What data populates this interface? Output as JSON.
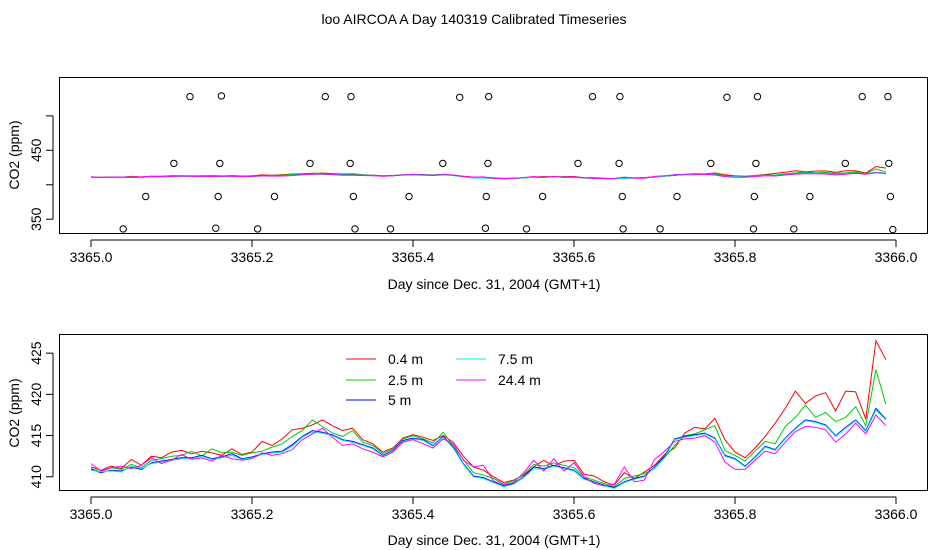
{
  "title": "loo AIRCOA A  Day 140319  Calibrated Timeseries",
  "chart_data": [
    {
      "type": "scatter+line",
      "xlabel": "Day since Dec. 31, 2004 (GMT+1)",
      "ylabel": "CO2 (ppm)",
      "xlim": [
        3365.0,
        3366.0
      ],
      "ylim": [
        330,
        555
      ],
      "x_ticks": [
        "3365.0",
        "3365.2",
        "3365.4",
        "3365.6",
        "3365.8",
        "3366.0"
      ],
      "y_ticks": [
        "350",
        "400",
        "450",
        "500"
      ],
      "y_ticks_printed": [
        "350",
        "",
        "450",
        ""
      ],
      "markers": {
        "style": "open-circle",
        "color": "#000000",
        "points": [
          [
            3365.04,
            336
          ],
          [
            3365.068,
            383
          ],
          [
            3365.103,
            431
          ],
          [
            3365.123,
            528
          ],
          [
            3365.155,
            337
          ],
          [
            3365.158,
            383
          ],
          [
            3365.16,
            431
          ],
          [
            3365.162,
            529
          ],
          [
            3365.207,
            336
          ],
          [
            3365.228,
            383
          ],
          [
            3365.272,
            431
          ],
          [
            3365.291,
            528
          ],
          [
            3365.322,
            431
          ],
          [
            3365.323,
            528
          ],
          [
            3365.326,
            383
          ],
          [
            3365.328,
            336
          ],
          [
            3365.372,
            336
          ],
          [
            3365.395,
            383
          ],
          [
            3365.437,
            431
          ],
          [
            3365.458,
            527
          ],
          [
            3365.49,
            337
          ],
          [
            3365.491,
            383
          ],
          [
            3365.493,
            431
          ],
          [
            3365.494,
            528
          ],
          [
            3365.541,
            336
          ],
          [
            3365.561,
            383
          ],
          [
            3365.605,
            431
          ],
          [
            3365.623,
            528
          ],
          [
            3365.656,
            431
          ],
          [
            3365.657,
            528
          ],
          [
            3365.66,
            383
          ],
          [
            3365.661,
            336
          ],
          [
            3365.707,
            336
          ],
          [
            3365.728,
            383
          ],
          [
            3365.77,
            431
          ],
          [
            3365.79,
            527
          ],
          [
            3365.823,
            336
          ],
          [
            3365.824,
            383
          ],
          [
            3365.826,
            431
          ],
          [
            3365.828,
            528
          ],
          [
            3365.873,
            336
          ],
          [
            3365.893,
            383
          ],
          [
            3365.937,
            431
          ],
          [
            3365.958,
            528
          ],
          [
            3365.99,
            528
          ],
          [
            3365.991,
            431
          ],
          [
            3365.993,
            383
          ],
          [
            3365.996,
            335
          ]
        ]
      },
      "series": [
        {
          "color": "#ff0000",
          "values_ref": "panel2"
        },
        {
          "color": "#00cd00",
          "values_ref": "panel2"
        },
        {
          "color": "#0000ff",
          "values_ref": "panel2"
        },
        {
          "color": "#00eeee",
          "values_ref": "panel2"
        },
        {
          "color": "#ff00ff",
          "values_ref": "panel2"
        }
      ],
      "grid": false
    },
    {
      "type": "line",
      "xlabel": "Day since Dec. 31, 2004 (GMT+1)",
      "ylabel": "CO2 (ppm)",
      "xlim": [
        3365.0,
        3366.0
      ],
      "ylim": [
        408.4,
        427.2
      ],
      "x_ticks": [
        "3365.0",
        "3365.2",
        "3365.4",
        "3365.6",
        "3365.8",
        "3366.0"
      ],
      "y_ticks": [
        "410",
        "415",
        "420",
        "425"
      ],
      "grid": false,
      "legend": "top-left-center",
      "x": [
        3365.0,
        3365.0125,
        3365.025,
        3365.0375,
        3365.05,
        3365.0625,
        3365.075,
        3365.0875,
        3365.1,
        3365.1125,
        3365.125,
        3365.1375,
        3365.15,
        3365.1625,
        3365.175,
        3365.1875,
        3365.2,
        3365.2125,
        3365.225,
        3365.2375,
        3365.25,
        3365.2625,
        3365.275,
        3365.2875,
        3365.3,
        3365.3125,
        3365.325,
        3365.3375,
        3365.35,
        3365.3625,
        3365.375,
        3365.3875,
        3365.4,
        3365.4125,
        3365.425,
        3365.4375,
        3365.45,
        3365.4625,
        3365.475,
        3365.4875,
        3365.5,
        3365.5125,
        3365.525,
        3365.5375,
        3365.55,
        3365.5625,
        3365.575,
        3365.5875,
        3365.6,
        3365.6125,
        3365.625,
        3365.6375,
        3365.65,
        3365.6625,
        3365.675,
        3365.6875,
        3365.7,
        3365.7125,
        3365.725,
        3365.7375,
        3365.75,
        3365.7625,
        3365.775,
        3365.7875,
        3365.8,
        3365.8125,
        3365.825,
        3365.8375,
        3365.85,
        3365.8625,
        3365.875,
        3365.8875,
        3365.9,
        3365.9125,
        3365.925,
        3365.9375,
        3365.95,
        3365.9625,
        3365.975,
        3365.9875
      ],
      "series": [
        {
          "name": "0.4 m",
          "color": "#ff0000",
          "values": [
            411.2,
            410.8,
            411.3,
            411.0,
            412.1,
            411.4,
            412.5,
            412.3,
            413.0,
            413.2,
            412.8,
            413.1,
            412.9,
            412.6,
            413.4,
            412.7,
            413.0,
            414.3,
            413.8,
            414.6,
            415.7,
            415.9,
            416.3,
            416.9,
            416.2,
            415.6,
            415.9,
            414.5,
            414.0,
            413.0,
            413.5,
            414.7,
            415.1,
            414.8,
            414.4,
            415.0,
            414.2,
            412.5,
            411.2,
            410.8,
            410.0,
            409.3,
            409.6,
            410.2,
            411.2,
            412.0,
            411.3,
            411.9,
            412.0,
            410.3,
            410.1,
            409.4,
            409.0,
            410.5,
            409.8,
            410.6,
            411.4,
            412.7,
            413.5,
            415.3,
            416.0,
            415.8,
            417.1,
            414.5,
            413.0,
            412.3,
            413.5,
            414.9,
            416.5,
            418.3,
            420.4,
            418.9,
            419.8,
            420.2,
            418.0,
            420.4,
            420.3,
            417.0,
            426.5,
            424.2
          ]
        },
        {
          "name": "2.5 m",
          "color": "#00cd00",
          "values": [
            411.0,
            410.6,
            411.1,
            410.9,
            411.5,
            411.1,
            412.0,
            412.2,
            412.5,
            412.6,
            413.1,
            412.5,
            413.4,
            412.9,
            413.0,
            412.6,
            412.9,
            413.1,
            413.6,
            414.0,
            414.9,
            415.6,
            416.9,
            416.1,
            415.3,
            414.9,
            415.6,
            414.2,
            413.8,
            412.8,
            413.4,
            414.6,
            415.0,
            414.6,
            414.1,
            415.4,
            413.7,
            412.1,
            410.5,
            410.2,
            409.8,
            409.1,
            409.5,
            410.3,
            411.5,
            411.3,
            411.7,
            411.4,
            411.1,
            410.0,
            409.6,
            409.2,
            408.8,
            409.8,
            410.1,
            410.4,
            411.0,
            412.3,
            413.8,
            415.0,
            415.2,
            415.7,
            416.2,
            413.2,
            412.6,
            411.9,
            413.1,
            414.3,
            414.0,
            416.1,
            417.2,
            418.7,
            417.2,
            417.8,
            416.7,
            417.2,
            418.5,
            416.2,
            423.0,
            418.8
          ]
        },
        {
          "name": "5 m",
          "color": "#0000ff",
          "values": [
            410.9,
            410.5,
            410.8,
            410.7,
            411.2,
            410.9,
            411.7,
            411.9,
            412.1,
            412.3,
            412.3,
            412.6,
            412.2,
            412.4,
            412.8,
            412.2,
            412.4,
            412.8,
            413.0,
            413.1,
            413.9,
            414.9,
            415.6,
            415.4,
            415.1,
            414.5,
            414.3,
            413.9,
            413.5,
            412.6,
            413.2,
            414.4,
            414.7,
            414.5,
            413.8,
            414.9,
            413.6,
            411.6,
            410.1,
            409.9,
            409.4,
            408.9,
            409.2,
            410.0,
            411.2,
            411.0,
            411.4,
            411.1,
            410.8,
            409.8,
            409.4,
            409.0,
            408.7,
            409.4,
            409.8,
            410.1,
            411.2,
            412.5,
            414.6,
            414.9,
            415.1,
            415.3,
            414.7,
            412.6,
            412.2,
            411.3,
            412.4,
            413.7,
            413.3,
            414.7,
            415.9,
            416.9,
            416.7,
            416.3,
            415.0,
            416.0,
            416.9,
            415.6,
            418.3,
            417.0
          ]
        },
        {
          "name": "7.5 m",
          "color": "#00eeee",
          "values": [
            410.8,
            410.6,
            410.7,
            410.6,
            411.3,
            411.0,
            411.6,
            411.8,
            412.0,
            412.2,
            412.2,
            412.5,
            412.1,
            412.3,
            412.6,
            412.1,
            412.3,
            412.7,
            412.9,
            413.0,
            413.7,
            414.8,
            415.4,
            415.3,
            415.0,
            414.4,
            414.2,
            413.8,
            413.4,
            412.5,
            413.1,
            414.3,
            414.6,
            414.4,
            413.7,
            414.8,
            413.5,
            411.5,
            410.0,
            409.8,
            409.3,
            408.8,
            409.1,
            409.9,
            411.0,
            410.9,
            411.3,
            411.0,
            410.7,
            409.7,
            409.3,
            408.9,
            408.6,
            409.3,
            409.7,
            410.0,
            411.1,
            412.3,
            414.5,
            414.8,
            415.0,
            415.2,
            414.6,
            412.5,
            412.1,
            411.2,
            412.3,
            413.6,
            413.2,
            414.6,
            415.8,
            416.8,
            416.6,
            416.2,
            414.9,
            415.9,
            416.8,
            415.5,
            418.1,
            416.9
          ]
        },
        {
          "name": "24.4 m",
          "color": "#ff00ff",
          "values": [
            411.6,
            410.7,
            411.1,
            411.3,
            411.0,
            411.4,
            412.3,
            411.6,
            412.0,
            412.7,
            412.1,
            412.3,
            411.9,
            412.6,
            412.2,
            412.0,
            412.2,
            412.9,
            412.6,
            412.8,
            413.3,
            414.5,
            415.2,
            415.9,
            414.8,
            413.8,
            414.0,
            413.4,
            413.0,
            412.4,
            413.0,
            414.2,
            414.5,
            414.0,
            413.5,
            414.6,
            414.0,
            412.0,
            411.2,
            411.4,
            409.5,
            409.0,
            409.3,
            410.5,
            412.0,
            410.7,
            412.2,
            410.7,
            411.7,
            410.0,
            409.2,
            408.9,
            409.1,
            411.2,
            409.4,
            409.6,
            412.1,
            413.1,
            414.3,
            414.6,
            414.7,
            415.0,
            414.2,
            411.8,
            410.9,
            410.9,
            412.0,
            413.1,
            412.8,
            414.2,
            415.5,
            416.1,
            416.0,
            415.7,
            414.2,
            415.2,
            416.5,
            415.2,
            417.5,
            416.2
          ]
        }
      ]
    }
  ]
}
